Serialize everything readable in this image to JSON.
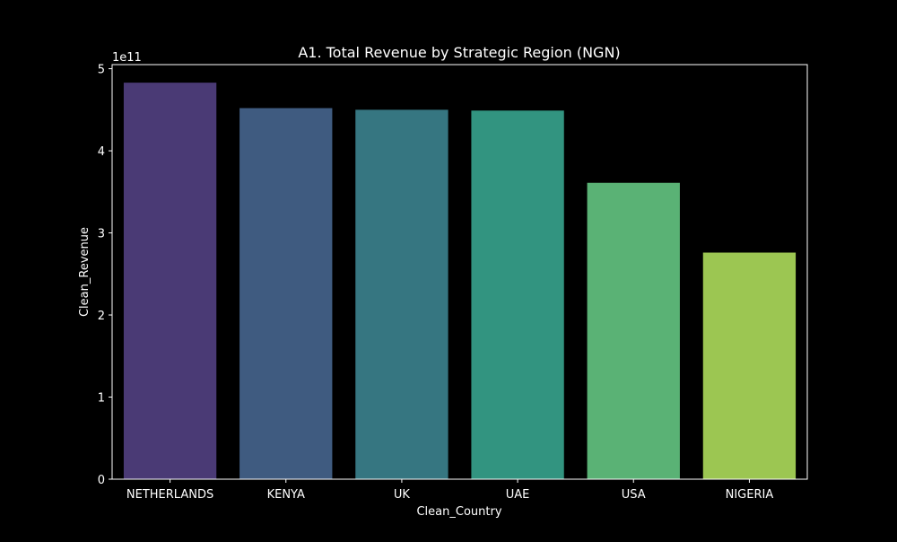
{
  "chart_data": {
    "type": "bar",
    "title": "A1. Total Revenue by Strategic Region (NGN)",
    "xlabel": "Clean_Country",
    "ylabel": "Clean_Revenue",
    "offset_label": "1e11",
    "categories": [
      "NETHERLANDS",
      "KENYA",
      "UK",
      "UAE",
      "USA",
      "NIGERIA"
    ],
    "values": [
      4.83,
      4.52,
      4.5,
      4.49,
      3.61,
      2.76
    ],
    "value_scale": 100000000000.0,
    "ylim": [
      0,
      5.05
    ],
    "yticks": [
      0,
      1,
      2,
      3,
      4,
      5
    ],
    "grid": false,
    "legend": "none",
    "colors": [
      "#4a3a75",
      "#3f5b80",
      "#367681",
      "#329480",
      "#5ab275",
      "#9cc652"
    ]
  },
  "style": {
    "background": "#000000",
    "foreground": "#ffffff"
  }
}
